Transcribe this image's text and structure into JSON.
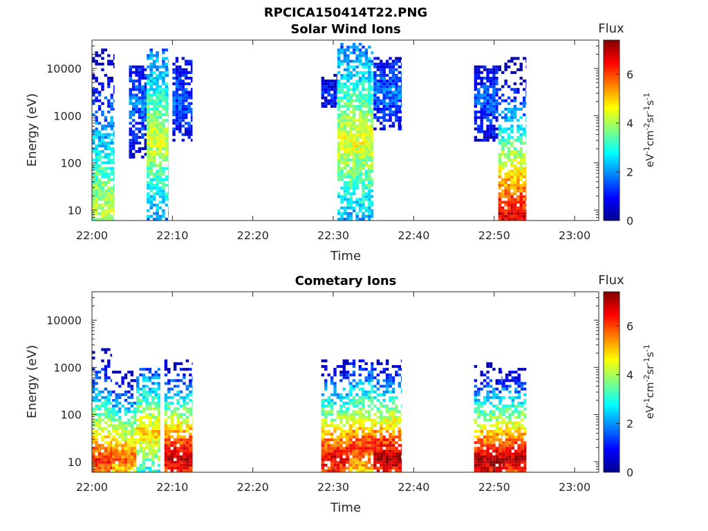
{
  "figure_title": "RPCICA150414T22.PNG",
  "colors": {
    "colormap": [
      "#00008f",
      "#0000ff",
      "#0080ff",
      "#00ffff",
      "#80ff80",
      "#ffff00",
      "#ff8000",
      "#ff0000",
      "#800000"
    ],
    "axis": "#262626"
  },
  "chart_data": [
    {
      "type": "heatmap",
      "title": "Solar Wind Ions",
      "xlabel": "Time",
      "ylabel": "Energy (eV)",
      "xticks": [
        "22:00",
        "22:10",
        "22:20",
        "22:30",
        "22:40",
        "22:50",
        "23:00"
      ],
      "xlim_minutes": [
        0,
        63
      ],
      "yscale": "log",
      "yticks": [
        "10",
        "100",
        "1000",
        "10000"
      ],
      "ylim": [
        6,
        40000
      ],
      "colorbar": {
        "title": "Flux",
        "label": "eV-1cm-2sr-1s-1",
        "ticks": [
          "0",
          "2",
          "4",
          "6"
        ],
        "range": [
          0,
          7.4
        ]
      },
      "bursts": [
        {
          "start_min": 0.0,
          "end_min": 2.8,
          "emin": 6,
          "emax": 25000,
          "peak": 4.2,
          "peak_energy": 12
        },
        {
          "start_min": 4.6,
          "end_min": 6.8,
          "emin": 120,
          "emax": 12000,
          "peak": 1.8,
          "peak_energy": 2000
        },
        {
          "start_min": 6.8,
          "end_min": 9.5,
          "emin": 6,
          "emax": 25000,
          "peak": 4.3,
          "peak_energy": 300
        },
        {
          "start_min": 10.0,
          "end_min": 12.5,
          "emin": 300,
          "emax": 18000,
          "peak": 1.6,
          "peak_energy": 2000
        },
        {
          "start_min": 28.5,
          "end_min": 30.5,
          "emin": 1500,
          "emax": 8000,
          "peak": 1.2,
          "peak_energy": 3000
        },
        {
          "start_min": 30.5,
          "end_min": 35.0,
          "emin": 6,
          "emax": 35000,
          "peak": 4.5,
          "peak_energy": 300
        },
        {
          "start_min": 35.0,
          "end_min": 38.5,
          "emin": 500,
          "emax": 18000,
          "peak": 1.8,
          "peak_energy": 3000
        },
        {
          "start_min": 47.5,
          "end_min": 50.5,
          "emin": 300,
          "emax": 12000,
          "peak": 1.6,
          "peak_energy": 2000
        },
        {
          "start_min": 50.5,
          "end_min": 54.0,
          "emin": 6,
          "emax": 18000,
          "peak": 6.7,
          "peak_energy": 8
        }
      ]
    },
    {
      "type": "heatmap",
      "title": "Cometary Ions",
      "xlabel": "Time",
      "ylabel": "Energy (eV)",
      "xticks": [
        "22:00",
        "22:10",
        "22:20",
        "22:30",
        "22:40",
        "22:50",
        "23:00"
      ],
      "xlim_minutes": [
        0,
        63
      ],
      "yscale": "log",
      "yticks": [
        "10",
        "100",
        "1000",
        "10000"
      ],
      "ylim": [
        6,
        40000
      ],
      "colorbar": {
        "title": "Flux",
        "label": "eV-1cm-2sr-1s-1",
        "ticks": [
          "0",
          "2",
          "4",
          "6"
        ],
        "range": [
          0,
          7.4
        ]
      },
      "bursts": [
        {
          "start_min": 0.0,
          "end_min": 2.5,
          "emin": 6,
          "emax": 2500,
          "peak": 6.3,
          "peak_energy": 10
        },
        {
          "start_min": 2.5,
          "end_min": 5.5,
          "emin": 6,
          "emax": 800,
          "peak": 5.8,
          "peak_energy": 12
        },
        {
          "start_min": 5.5,
          "end_min": 8.5,
          "emin": 6,
          "emax": 1000,
          "peak": 5.0,
          "peak_energy": 40
        },
        {
          "start_min": 9.0,
          "end_min": 12.5,
          "emin": 6,
          "emax": 1500,
          "peak": 7.0,
          "peak_energy": 12
        },
        {
          "start_min": 28.5,
          "end_min": 32.0,
          "emin": 6,
          "emax": 1500,
          "peak": 6.7,
          "peak_energy": 12
        },
        {
          "start_min": 32.0,
          "end_min": 35.0,
          "emin": 6,
          "emax": 1500,
          "peak": 6.2,
          "peak_energy": 20
        },
        {
          "start_min": 35.0,
          "end_min": 38.5,
          "emin": 6,
          "emax": 1500,
          "peak": 7.2,
          "peak_energy": 12
        },
        {
          "start_min": 47.5,
          "end_min": 51.0,
          "emin": 6,
          "emax": 1200,
          "peak": 7.2,
          "peak_energy": 10
        },
        {
          "start_min": 51.0,
          "end_min": 54.0,
          "emin": 6,
          "emax": 1000,
          "peak": 7.0,
          "peak_energy": 12
        }
      ]
    }
  ]
}
